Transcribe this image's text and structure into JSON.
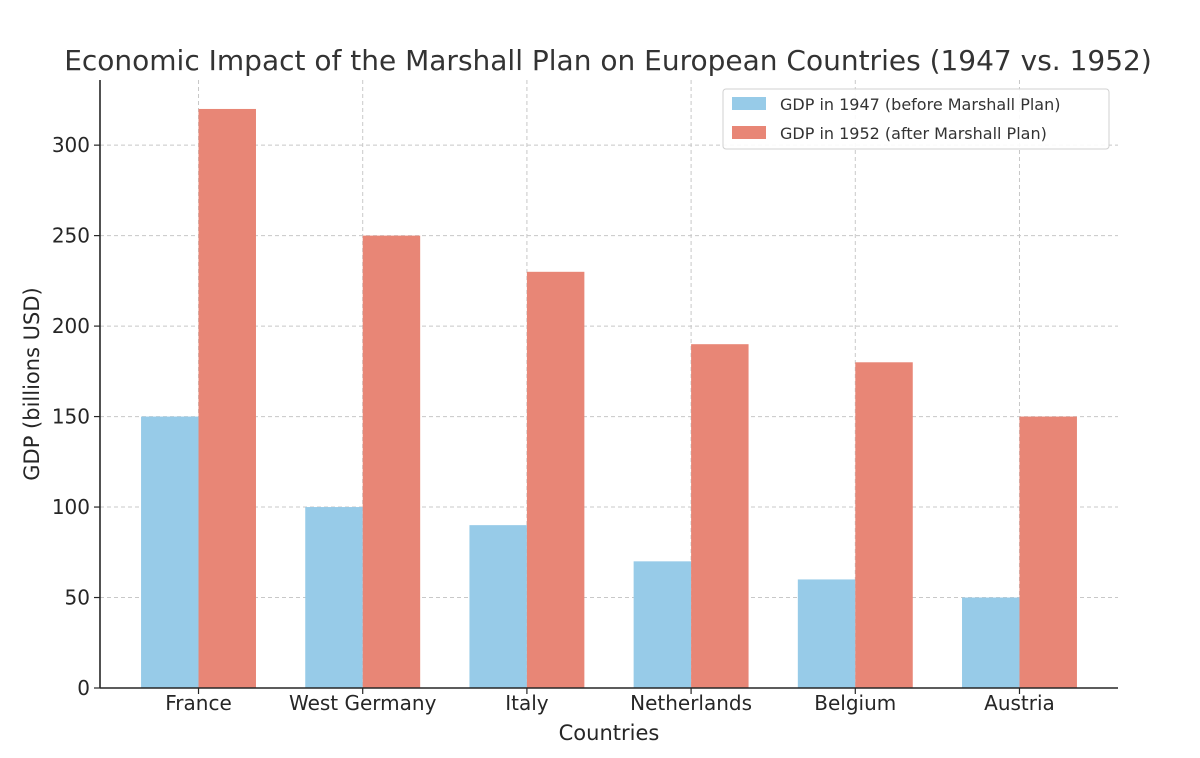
{
  "chart_data": {
    "type": "bar",
    "title": "Economic Impact of the Marshall Plan on European Countries (1947 vs. 1952)",
    "xlabel": "Countries",
    "ylabel": "GDP (billions USD)",
    "categories": [
      "France",
      "West Germany",
      "Italy",
      "Netherlands",
      "Belgium",
      "Austria"
    ],
    "series": [
      {
        "name": "GDP in 1947 (before Marshall Plan)",
        "color": "#97cbe8",
        "values": [
          150,
          100,
          90,
          70,
          60,
          50
        ]
      },
      {
        "name": "GDP in 1952 (after Marshall Plan)",
        "color": "#e88676",
        "values": [
          320,
          250,
          230,
          190,
          180,
          150
        ]
      }
    ],
    "yticks": [
      0,
      50,
      100,
      150,
      200,
      250,
      300
    ],
    "ylim": [
      0,
      336
    ],
    "grid": true,
    "legend_position": "top-right"
  }
}
